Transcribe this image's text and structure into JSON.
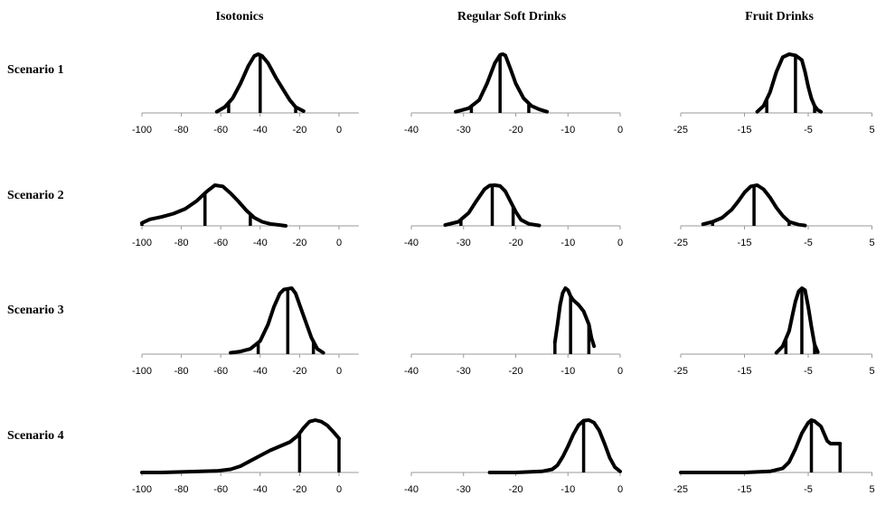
{
  "column_titles": [
    "Isotonics",
    "Regular Soft Drinks",
    "Fruit Drinks"
  ],
  "row_titles": [
    "Scenario 1",
    "Scenario 2",
    "Scenario 3",
    "Scenario 4"
  ],
  "chart_data": [
    {
      "type": "area",
      "row": "Scenario 1",
      "column": "Isotonics",
      "xlim": [
        -100,
        10
      ],
      "ticks": [
        -100,
        -80,
        -60,
        -40,
        -20,
        0
      ],
      "x": [
        -62,
        -58,
        -54,
        -50,
        -46,
        -43,
        -41,
        -39,
        -36,
        -32,
        -28,
        -25,
        -22,
        -18
      ],
      "density": [
        0.02,
        0.1,
        0.25,
        0.5,
        0.8,
        0.97,
        1.0,
        0.97,
        0.85,
        0.6,
        0.38,
        0.22,
        0.1,
        0.03
      ],
      "markers": [
        -56,
        -40,
        -22
      ]
    },
    {
      "type": "area",
      "row": "Scenario 1",
      "column": "Regular Soft Drinks",
      "xlim": [
        -40,
        0
      ],
      "ticks": [
        -40,
        -30,
        -20,
        -10,
        0
      ],
      "x": [
        -31.5,
        -29,
        -27,
        -25.5,
        -24,
        -23,
        -22.5,
        -22,
        -21,
        -20,
        -18.5,
        -17,
        -15.5,
        -14
      ],
      "density": [
        0.02,
        0.08,
        0.22,
        0.5,
        0.85,
        0.99,
        1.0,
        0.98,
        0.75,
        0.5,
        0.25,
        0.12,
        0.06,
        0.02
      ],
      "markers": [
        -28.5,
        -23,
        -17.5
      ]
    },
    {
      "type": "area",
      "row": "Scenario 1",
      "column": "Fruit Drinks",
      "xlim": [
        -25,
        5
      ],
      "ticks": [
        -25,
        -15,
        -5,
        5
      ],
      "x": [
        -13,
        -12,
        -11,
        -10,
        -9,
        -8,
        -7,
        -6,
        -5.5,
        -5,
        -4.5,
        -4,
        -3.5,
        -3
      ],
      "density": [
        0.02,
        0.12,
        0.35,
        0.7,
        0.95,
        1.0,
        0.98,
        0.9,
        0.7,
        0.45,
        0.25,
        0.12,
        0.05,
        0.02
      ],
      "markers": [
        -11.5,
        -7,
        -4
      ]
    },
    {
      "type": "area",
      "row": "Scenario 2",
      "column": "Isotonics",
      "xlim": [
        -100,
        10
      ],
      "ticks": [
        -100,
        -80,
        -60,
        -40,
        -20,
        0
      ],
      "x": [
        -100,
        -96,
        -90,
        -84,
        -78,
        -72,
        -67,
        -63,
        -59,
        -55,
        -51,
        -47,
        -43,
        -39,
        -35,
        -30,
        -27
      ],
      "density": [
        0.07,
        0.16,
        0.22,
        0.3,
        0.42,
        0.62,
        0.85,
        1.0,
        0.97,
        0.8,
        0.6,
        0.38,
        0.2,
        0.1,
        0.05,
        0.02,
        0.0
      ],
      "markers": [
        -100,
        -68,
        -45
      ]
    },
    {
      "type": "area",
      "row": "Scenario 2",
      "column": "Regular Soft Drinks",
      "xlim": [
        -40,
        0
      ],
      "ticks": [
        -40,
        -30,
        -20,
        -10,
        0
      ],
      "x": [
        -33.5,
        -31,
        -29,
        -27.5,
        -26,
        -25,
        -24,
        -23,
        -22,
        -21,
        -20,
        -19,
        -17.5,
        -15.5
      ],
      "density": [
        0.02,
        0.1,
        0.32,
        0.62,
        0.9,
        0.99,
        1.0,
        0.98,
        0.85,
        0.6,
        0.35,
        0.15,
        0.05,
        0.01
      ],
      "markers": [
        -30.5,
        -24.5,
        -20.5
      ]
    },
    {
      "type": "area",
      "row": "Scenario 2",
      "column": "Fruit Drinks",
      "xlim": [
        -25,
        5
      ],
      "ticks": [
        -25,
        -15,
        -5,
        5
      ],
      "x": [
        -21.5,
        -20,
        -18.5,
        -17,
        -16,
        -15,
        -14,
        -13,
        -12,
        -11,
        -10,
        -9,
        -8,
        -6.5,
        -5.5
      ],
      "density": [
        0.04,
        0.1,
        0.2,
        0.4,
        0.6,
        0.82,
        0.97,
        1.0,
        0.9,
        0.7,
        0.45,
        0.25,
        0.1,
        0.03,
        0.01
      ],
      "markers": [
        -20,
        -13.5,
        -8
      ]
    },
    {
      "type": "area",
      "row": "Scenario 3",
      "column": "Isotonics",
      "xlim": [
        -100,
        10
      ],
      "ticks": [
        -100,
        -80,
        -60,
        -40,
        -20,
        0
      ],
      "x": [
        -55,
        -50,
        -45,
        -40,
        -36,
        -33,
        -30,
        -28,
        -26,
        -24,
        -22,
        -20,
        -17,
        -14,
        -11,
        -8
      ],
      "density": [
        0.02,
        0.04,
        0.08,
        0.2,
        0.45,
        0.72,
        0.92,
        0.98,
        0.99,
        1.0,
        0.92,
        0.75,
        0.5,
        0.25,
        0.08,
        0.02
      ],
      "markers": [
        -41,
        -26,
        -13
      ]
    },
    {
      "type": "area",
      "row": "Scenario 3",
      "column": "Regular Soft Drinks",
      "xlim": [
        -40,
        0
      ],
      "ticks": [
        -40,
        -30,
        -20,
        -10,
        0
      ],
      "x": [
        -12.5,
        -12,
        -11.5,
        -11,
        -10.5,
        -10,
        -9.5,
        -9,
        -8,
        -7,
        -6,
        -5.5,
        -5
      ],
      "density": [
        0.18,
        0.45,
        0.75,
        0.93,
        1.0,
        0.97,
        0.88,
        0.82,
        0.75,
        0.65,
        0.45,
        0.25,
        0.12
      ],
      "markers": [
        -12.5,
        -9.5,
        -6
      ]
    },
    {
      "type": "area",
      "row": "Scenario 3",
      "column": "Fruit Drinks",
      "xlim": [
        -25,
        5
      ],
      "ticks": [
        -25,
        -15,
        -5,
        5
      ],
      "x": [
        -10,
        -9,
        -8,
        -7.5,
        -7,
        -6.5,
        -6,
        -5.5,
        -5,
        -4.5,
        -4,
        -3.5
      ],
      "density": [
        0.02,
        0.12,
        0.35,
        0.58,
        0.8,
        0.95,
        1.0,
        0.97,
        0.72,
        0.42,
        0.15,
        0.03
      ],
      "markers": [
        -8.5,
        -6,
        -4
      ]
    },
    {
      "type": "area",
      "row": "Scenario 4",
      "column": "Isotonics",
      "xlim": [
        -100,
        10
      ],
      "ticks": [
        -100,
        -80,
        -60,
        -40,
        -20,
        0
      ],
      "x": [
        -100,
        -90,
        -80,
        -70,
        -62,
        -55,
        -50,
        -45,
        -40,
        -35,
        -30,
        -25,
        -21,
        -18,
        -15,
        -12,
        -9,
        -6,
        -3,
        0
      ],
      "density": [
        0.0,
        0.0,
        0.01,
        0.02,
        0.03,
        0.06,
        0.12,
        0.22,
        0.32,
        0.42,
        0.5,
        0.58,
        0.7,
        0.85,
        0.97,
        1.0,
        0.97,
        0.9,
        0.78,
        0.65
      ],
      "markers": [
        -20,
        0
      ]
    },
    {
      "type": "area",
      "row": "Scenario 4",
      "column": "Regular Soft Drinks",
      "xlim": [
        -40,
        0
      ],
      "ticks": [
        -40,
        -30,
        -20,
        -10,
        0
      ],
      "x": [
        -25,
        -20,
        -15,
        -13,
        -12,
        -11,
        -10,
        -9,
        -8,
        -7,
        -6,
        -5,
        -4,
        -3,
        -2,
        -1,
        0
      ],
      "density": [
        0.0,
        0.0,
        0.02,
        0.06,
        0.14,
        0.3,
        0.5,
        0.72,
        0.9,
        0.99,
        1.0,
        0.95,
        0.8,
        0.55,
        0.28,
        0.1,
        0.02
      ],
      "markers": [
        -7,
        0
      ]
    },
    {
      "type": "area",
      "row": "Scenario 4",
      "column": "Fruit Drinks",
      "xlim": [
        -25,
        5
      ],
      "ticks": [
        -25,
        -15,
        -5,
        5
      ],
      "x": [
        -25,
        -20,
        -15,
        -11,
        -9,
        -8,
        -7,
        -6,
        -5,
        -4.5,
        -4,
        -3,
        -2,
        -1.5,
        -1,
        -0.5,
        0
      ],
      "density": [
        0.0,
        0.0,
        0.0,
        0.02,
        0.08,
        0.2,
        0.45,
        0.75,
        0.95,
        1.0,
        0.98,
        0.88,
        0.6,
        0.55,
        0.55,
        0.55,
        0.55
      ],
      "markers": [
        -4.5,
        0
      ]
    }
  ]
}
